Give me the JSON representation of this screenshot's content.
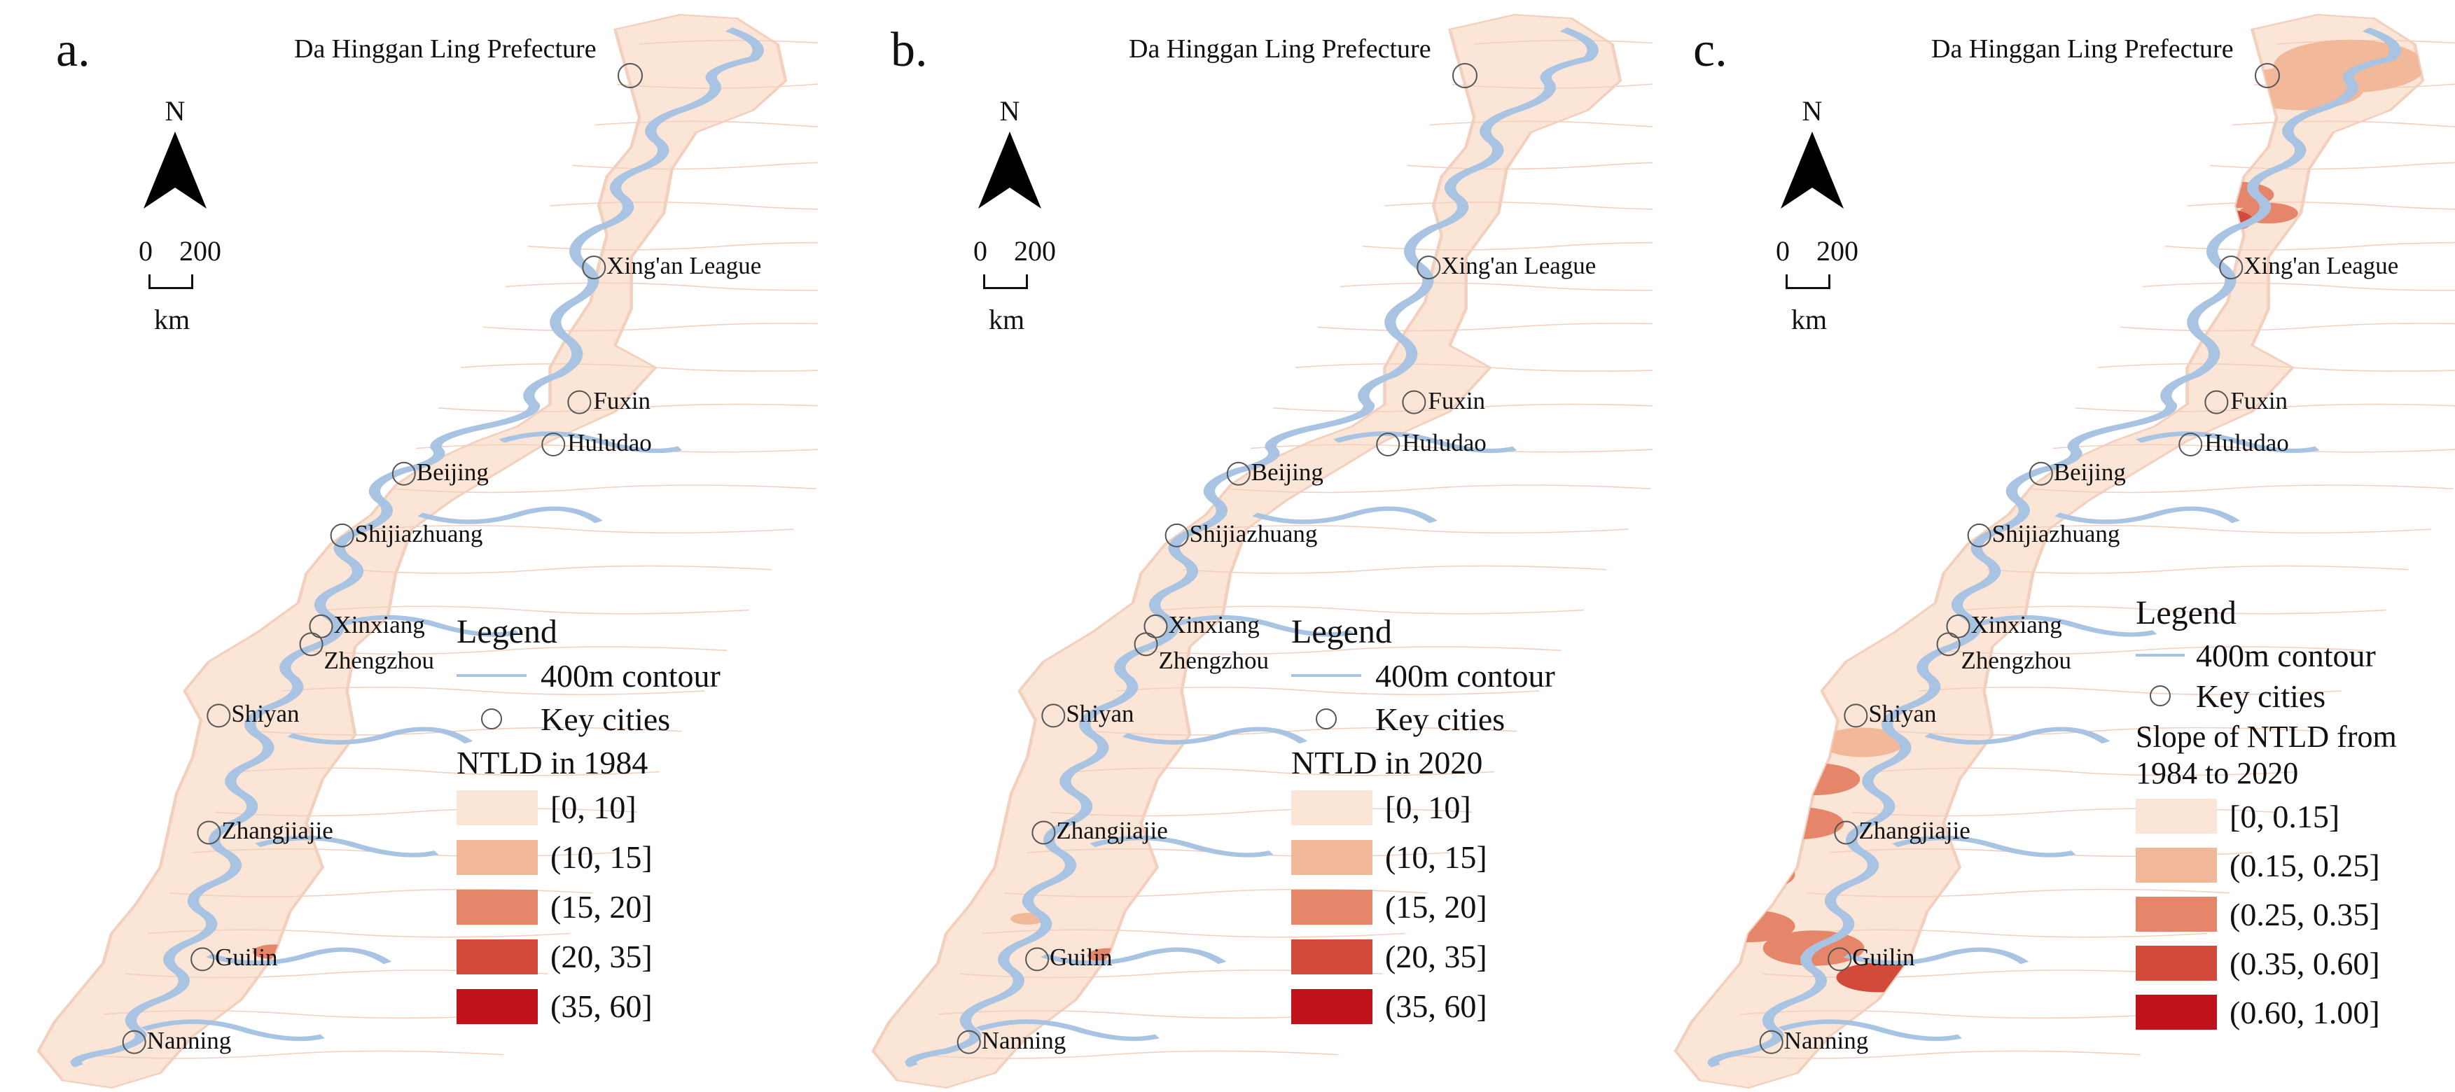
{
  "panels": [
    {
      "label": "a.",
      "legend_title": "Legend",
      "classes_title": "NTLD in 1984",
      "classes": [
        "[0, 10]",
        "(10, 15]",
        "(15, 20]",
        "(20, 35]",
        "(35, 60]"
      ]
    },
    {
      "label": "b.",
      "legend_title": "Legend",
      "classes_title": "NTLD in 2020",
      "classes": [
        "[0, 10]",
        "(10, 15]",
        "(15, 20]",
        "(20, 35]",
        "(35, 60]"
      ]
    },
    {
      "label": "c.",
      "legend_title": "Legend",
      "classes_title": "Slope of NTLD from 1984 to 2020",
      "classes": [
        "[0, 0.15]",
        "(0.15, 0.25]",
        "(0.25, 0.35]",
        "(0.35, 0.60]",
        "(0.60, 1.00]"
      ]
    }
  ],
  "prefecture_label": "Da Hinggan Ling Prefecture",
  "north_label": "N",
  "scale": {
    "start": "0",
    "end": "200",
    "unit": "km"
  },
  "legend_items": {
    "contour": "400m contour",
    "cities": "Key cities"
  },
  "cities": [
    "Xing'an League",
    "Fuxin",
    "Huludao",
    "Beijing",
    "Shijiazhuang",
    "Xinxiang",
    "Zhengzhou",
    "Shiyan",
    "Zhangjiajie",
    "Guilin",
    "Nanning"
  ],
  "colors": {
    "class_ramp": [
      "#fbe5d6",
      "#f2b89a",
      "#e5866a",
      "#d24b3a",
      "#c0121a"
    ],
    "contour": "#a9c4e3",
    "base": "#fbe5d6",
    "boundary": "#f3cfbd"
  }
}
